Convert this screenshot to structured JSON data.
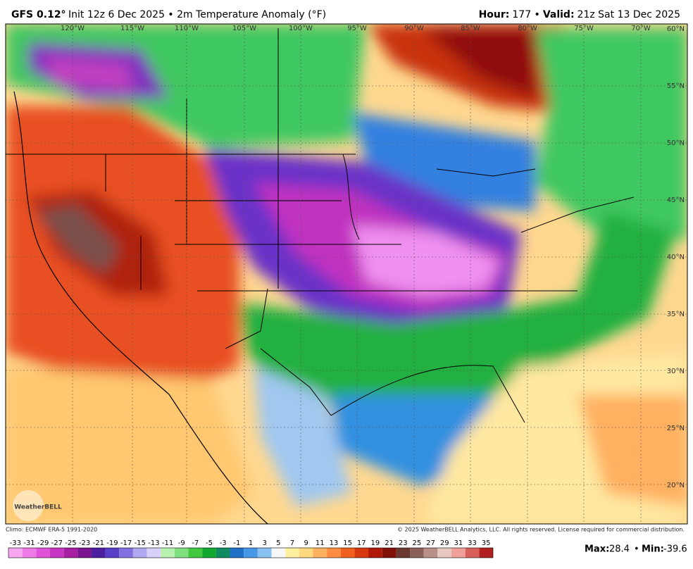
{
  "header": {
    "model": "GFS 0.12°",
    "description": "Init 12z 6 Dec 2025 • 2m Temperature Anomaly (°F)",
    "right": [
      {
        "text": "Hour:",
        "bold": true
      },
      {
        "text": "177 •",
        "bold": false
      },
      {
        "text": "Valid:",
        "bold": true
      },
      {
        "text": "21z Sat 13 Dec 2025",
        "bold": false
      }
    ]
  },
  "map": {
    "longitude_labels": [
      "120°W",
      "115°W",
      "110°W",
      "105°W",
      "100°W",
      "95°W",
      "90°W",
      "85°W",
      "80°W",
      "75°W",
      "70°W"
    ],
    "latitude_labels": [
      "60°N",
      "55°N",
      "50°N",
      "45°N",
      "40°N",
      "35°N",
      "30°N",
      "25°N",
      "20°N"
    ],
    "logo": "WeatherBELL"
  },
  "footer": {
    "climo": "Climo: ECMWF ERA-5 1991-2020",
    "copyright": "© 2025 WeatherBELL Analytics, LLC. All rights reserved. License required for commercial distribution.",
    "max_label": "Max:",
    "max": "28.4",
    "min_label": "Min:",
    "min": "-39.6"
  },
  "colorbar": {
    "labels": [
      "-33",
      "-31",
      "-29",
      "-27",
      "-25",
      "-23",
      "-21",
      "-19",
      "-17",
      "-15",
      "-13",
      "-11",
      "-9",
      "-7",
      "-5",
      "-3",
      "-1",
      "1",
      "3",
      "5",
      "7",
      "9",
      "11",
      "13",
      "15",
      "17",
      "19",
      "21",
      "23",
      "25",
      "27",
      "29",
      "31",
      "33",
      "35"
    ],
    "colors": [
      "#f7a8f0",
      "#ef7ae6",
      "#e052d8",
      "#c936c4",
      "#a81fa4",
      "#7a1490",
      "#4b1fa0",
      "#5a3fc8",
      "#8070e0",
      "#b0a8f0",
      "#d8d0f8",
      "#b8f0b0",
      "#80e080",
      "#40c840",
      "#10a830",
      "#108a60",
      "#2070c8",
      "#4898e8",
      "#88c0f0",
      "#f8f8f8",
      "#fff0a0",
      "#ffd880",
      "#ffb060",
      "#ff8c40",
      "#f06020",
      "#d83810",
      "#b01808",
      "#801008",
      "#6a3a30",
      "#8a6058",
      "#b89088",
      "#e8c8c0",
      "#f0a098",
      "#d86058",
      "#b02020"
    ]
  }
}
